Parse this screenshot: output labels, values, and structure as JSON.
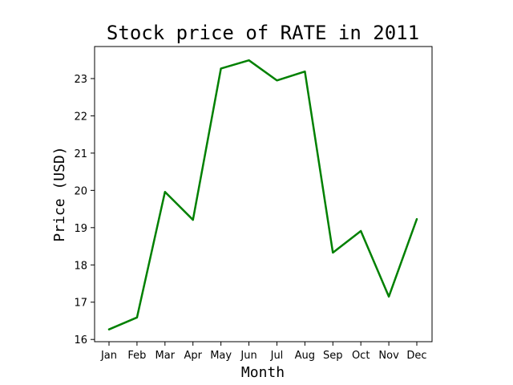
{
  "chart_data": {
    "type": "line",
    "title": "Stock price of RATE in 2011",
    "xlabel": "Month",
    "ylabel": "Price (USD)",
    "categories": [
      "Jan",
      "Feb",
      "Mar",
      "Apr",
      "May",
      "Jun",
      "Jul",
      "Aug",
      "Sep",
      "Oct",
      "Nov",
      "Dec"
    ],
    "series": [
      {
        "values": [
          16.27,
          16.59,
          19.96,
          19.21,
          23.27,
          23.49,
          22.95,
          23.19,
          18.33,
          18.91,
          17.15,
          19.23
        ],
        "color": "#008000"
      }
    ],
    "yticks": [
      16,
      17,
      18,
      19,
      20,
      21,
      22,
      23
    ],
    "ylim": [
      15.94,
      23.86
    ],
    "grid": false,
    "legend": false
  }
}
